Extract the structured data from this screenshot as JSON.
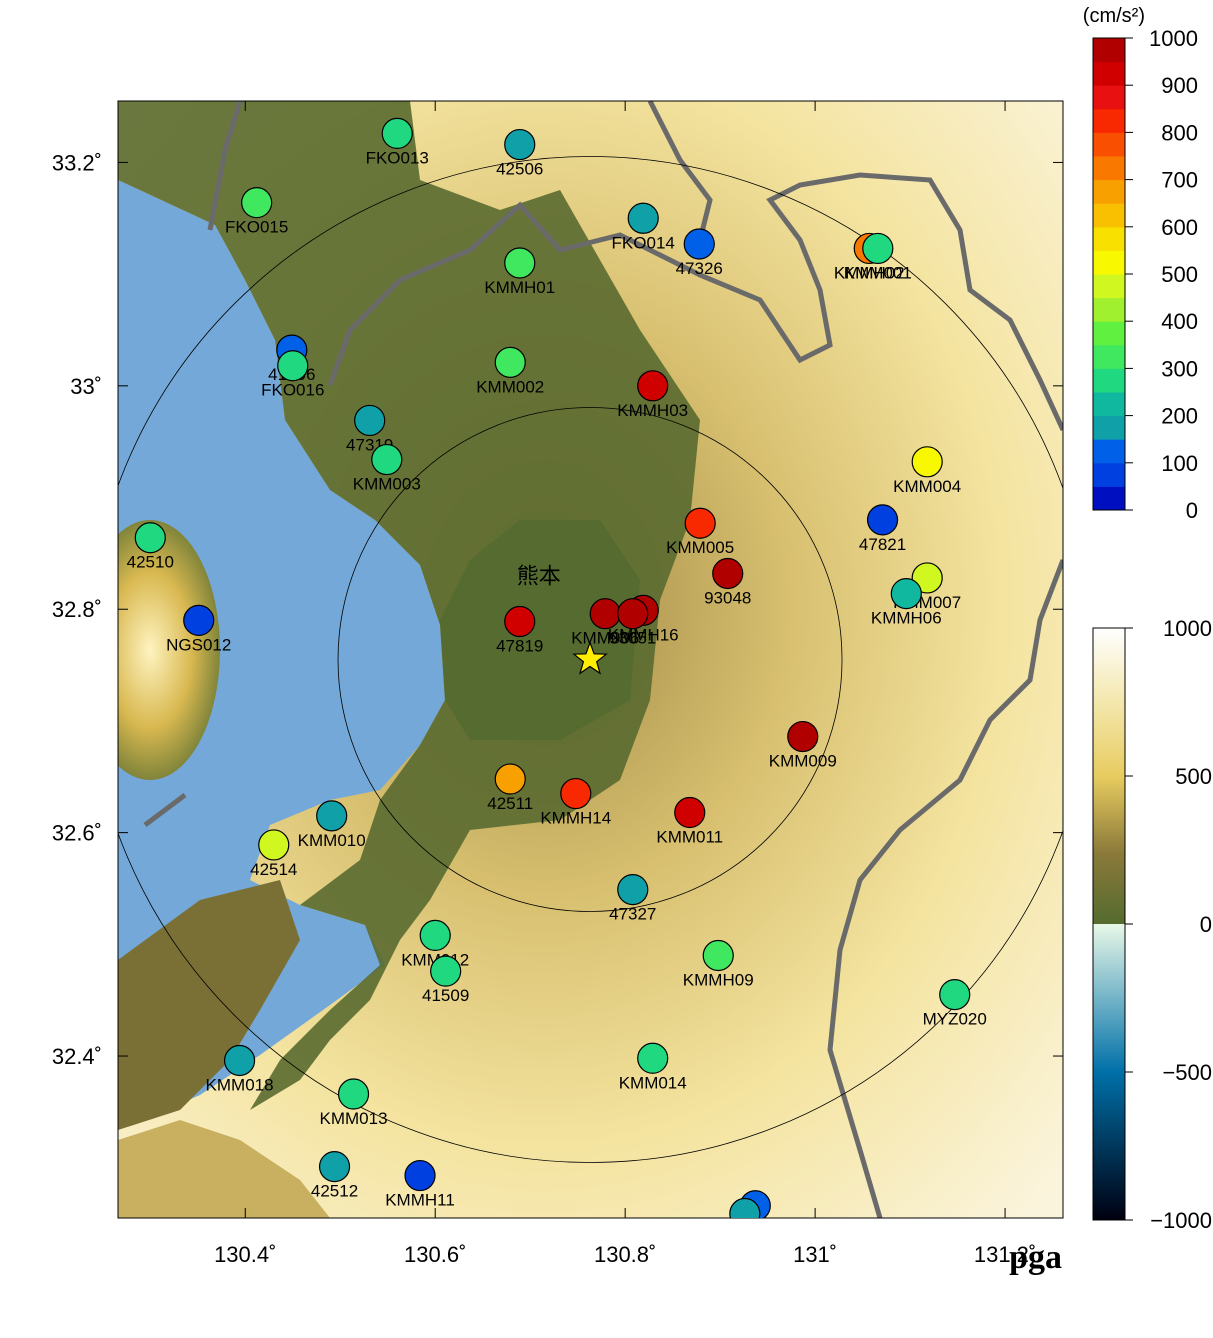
{
  "map": {
    "xlim": [
      130.266,
      131.261
    ],
    "ylim": [
      32.255,
      33.255
    ],
    "xticks": [
      {
        "value": 130.4,
        "label": "130.4˚"
      },
      {
        "value": 130.6,
        "label": "130.6˚"
      },
      {
        "value": 130.8,
        "label": "130.8˚"
      },
      {
        "value": 131,
        "label": "131˚"
      },
      {
        "value": 131.2,
        "label": "131.2˚"
      }
    ],
    "yticks": [
      {
        "value": 32.4,
        "label": "32.4˚"
      },
      {
        "value": 32.6,
        "label": "32.6˚"
      },
      {
        "value": 32.8,
        "label": "32.8˚"
      },
      {
        "value": 33,
        "label": "33˚"
      },
      {
        "value": 33.2,
        "label": "33.2˚"
      }
    ],
    "city": {
      "label": "熊本",
      "lon": 130.709,
      "lat": 32.823
    },
    "epicenter": {
      "lon": 130.763,
      "lat": 32.755
    },
    "corner_label": "pga",
    "stations": [
      {
        "name": "FKO013",
        "lon": 130.56,
        "lat": 33.226,
        "pga": 280
      },
      {
        "name": "42506",
        "lon": 130.689,
        "lat": 33.216,
        "pga": 170
      },
      {
        "name": "FKO015",
        "lon": 130.412,
        "lat": 33.164,
        "pga": 300
      },
      {
        "name": "FKO014",
        "lon": 130.819,
        "lat": 33.15,
        "pga": 180
      },
      {
        "name": "47326",
        "lon": 130.878,
        "lat": 33.127,
        "pga": 120
      },
      {
        "name": "KMMH02",
        "lon": 131.057,
        "lat": 33.123,
        "pga": 720
      },
      {
        "name": "KMM001",
        "lon": 131.066,
        "lat": 33.123,
        "pga": 260
      },
      {
        "name": "KMMH01",
        "lon": 130.689,
        "lat": 33.11,
        "pga": 330
      },
      {
        "name": "41506",
        "lon": 130.449,
        "lat": 33.032,
        "pga": 110
      },
      {
        "name": "FKO016",
        "lon": 130.45,
        "lat": 33.018,
        "pga": 260
      },
      {
        "name": "KMM002",
        "lon": 130.679,
        "lat": 33.021,
        "pga": 330
      },
      {
        "name": "KMMH03",
        "lon": 130.829,
        "lat": 33.0,
        "pga": 930
      },
      {
        "name": "47319",
        "lon": 130.531,
        "lat": 32.969,
        "pga": 170
      },
      {
        "name": "KMM003",
        "lon": 130.549,
        "lat": 32.934,
        "pga": 290
      },
      {
        "name": "KMM004",
        "lon": 131.118,
        "lat": 32.932,
        "pga": 530
      },
      {
        "name": "47821",
        "lon": 131.071,
        "lat": 32.88,
        "pga": 80
      },
      {
        "name": "KMM005",
        "lon": 130.879,
        "lat": 32.877,
        "pga": 840
      },
      {
        "name": "42510",
        "lon": 130.3,
        "lat": 32.864,
        "pga": 290
      },
      {
        "name": "93048",
        "lon": 130.908,
        "lat": 32.832,
        "pga": 960
      },
      {
        "name": "KMM007",
        "lon": 131.118,
        "lat": 32.828,
        "pga": 470
      },
      {
        "name": "KMMH06",
        "lon": 131.096,
        "lat": 32.814,
        "pga": 240
      },
      {
        "name": "NGS012",
        "lon": 130.351,
        "lat": 32.79,
        "pga": 80
      },
      {
        "name": "47819",
        "lon": 130.689,
        "lat": 32.789,
        "pga": 920
      },
      {
        "name": "KMM006",
        "lon": 130.779,
        "lat": 32.796,
        "pga": 960
      },
      {
        "name": "KMMH16",
        "lon": 130.819,
        "lat": 32.799,
        "pga": 960
      },
      {
        "name": "93051",
        "lon": 130.808,
        "lat": 32.796,
        "pga": 950
      },
      {
        "name": "KMM009",
        "lon": 130.987,
        "lat": 32.686,
        "pga": 980
      },
      {
        "name": "42511",
        "lon": 130.679,
        "lat": 32.648,
        "pga": 650
      },
      {
        "name": "KMMH14",
        "lon": 130.748,
        "lat": 32.635,
        "pga": 800
      },
      {
        "name": "KMM011",
        "lon": 130.868,
        "lat": 32.618,
        "pga": 900
      },
      {
        "name": "KMM010",
        "lon": 130.491,
        "lat": 32.615,
        "pga": 170
      },
      {
        "name": "42514",
        "lon": 130.43,
        "lat": 32.589,
        "pga": 460
      },
      {
        "name": "47327",
        "lon": 130.808,
        "lat": 32.549,
        "pga": 180
      },
      {
        "name": "KMM012",
        "lon": 130.6,
        "lat": 32.508,
        "pga": 250
      },
      {
        "name": "41509",
        "lon": 130.611,
        "lat": 32.476,
        "pga": 280
      },
      {
        "name": "KMMH09",
        "lon": 130.898,
        "lat": 32.49,
        "pga": 340
      },
      {
        "name": "MYZ020",
        "lon": 131.147,
        "lat": 32.455,
        "pga": 270
      },
      {
        "name": "KMM014",
        "lon": 130.829,
        "lat": 32.398,
        "pga": 280
      },
      {
        "name": "KMM018",
        "lon": 130.394,
        "lat": 32.396,
        "pga": 170
      },
      {
        "name": "KMM013",
        "lon": 130.514,
        "lat": 32.366,
        "pga": 260
      },
      {
        "name": "42512",
        "lon": 130.494,
        "lat": 32.301,
        "pga": 170
      },
      {
        "name": "KMMH11",
        "lon": 130.584,
        "lat": 32.293,
        "pga": 80
      },
      {
        "name": null,
        "lon": 130.937,
        "lat": 32.266,
        "pga": 110
      },
      {
        "name": null,
        "lon": 130.926,
        "lat": 32.259,
        "pga": 170
      }
    ]
  },
  "pga_scale": {
    "unit": "(cm/s²)",
    "lim": [
      0,
      1000
    ],
    "ticks": [
      0,
      100,
      200,
      300,
      400,
      500,
      600,
      700,
      800,
      900,
      1000
    ],
    "colors": [
      "#0010c0",
      "#0040e0",
      "#0060e8",
      "#10a0a8",
      "#10b8a0",
      "#20d880",
      "#40e860",
      "#60f040",
      "#a0f030",
      "#d0f820",
      "#f8f800",
      "#f8e000",
      "#f8c000",
      "#f8a000",
      "#f87800",
      "#f85000",
      "#f82800",
      "#e81010",
      "#d00000",
      "#b00000"
    ]
  },
  "elevation_scale": {
    "lim": [
      -1000,
      1000
    ],
    "ticks": [
      {
        "value": -1000,
        "label": "−1000"
      },
      {
        "value": -500,
        "label": "−500"
      },
      0,
      500,
      1000
    ]
  }
}
